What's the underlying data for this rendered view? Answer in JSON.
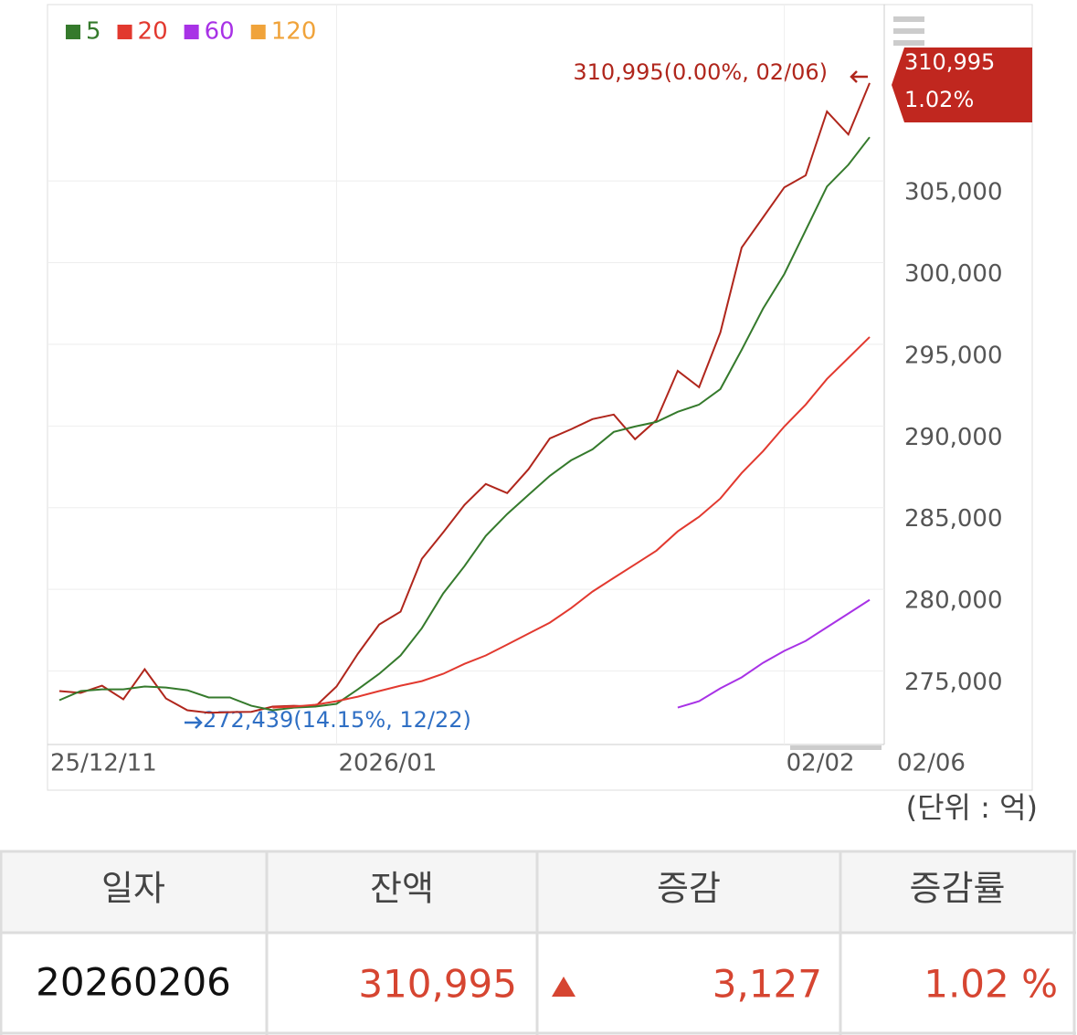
{
  "chart_data": {
    "type": "line",
    "categories": [
      "25/12/11",
      null,
      null,
      null,
      null,
      null,
      null,
      null,
      null,
      null,
      null,
      null,
      null,
      "2026/01",
      null,
      null,
      null,
      null,
      null,
      null,
      null,
      null,
      null,
      null,
      null,
      null,
      null,
      null,
      null,
      null,
      null,
      null,
      null,
      null,
      "02/02",
      null,
      null,
      null,
      "02/06"
    ],
    "series": [
      {
        "color": "#b0261c",
        "values": [
          273770,
          273660,
          274100,
          273270,
          275110,
          273320,
          272600,
          272439,
          272480,
          272500,
          272820,
          272870,
          272820,
          274050,
          276060,
          277850,
          278630,
          281870,
          283490,
          285170,
          286450,
          285890,
          287350,
          289240,
          289800,
          290420,
          290700,
          289190,
          290360,
          293380,
          292370,
          295730,
          300920,
          302770,
          304610,
          305340,
          309250,
          307850,
          310995
        ]
      },
      {
        "name": "5",
        "color": "#357a2c",
        "values": [
          273210,
          273770,
          273880,
          273880,
          274050,
          273990,
          273820,
          273380,
          273380,
          272870,
          272600,
          272760,
          272820,
          272990,
          273880,
          274830,
          275950,
          277620,
          279750,
          281420,
          283270,
          284610,
          285780,
          286950,
          287900,
          288570,
          289640,
          289970,
          290250,
          290870,
          291310,
          292260,
          294660,
          297180,
          299300,
          301980,
          304660,
          305990,
          307680
        ]
      },
      {
        "name": "20",
        "color": "#e2392f",
        "values": [
          null,
          null,
          null,
          null,
          null,
          null,
          null,
          null,
          null,
          null,
          272760,
          272820,
          272930,
          273150,
          273430,
          273770,
          274100,
          274380,
          274830,
          275440,
          275950,
          276620,
          277290,
          277960,
          278850,
          279860,
          280700,
          281530,
          282370,
          283550,
          284440,
          285560,
          287120,
          288460,
          289970,
          291310,
          292880,
          294160,
          295450
        ]
      },
      {
        "name": "60",
        "color": "#a832e6",
        "values": [
          null,
          null,
          null,
          null,
          null,
          null,
          null,
          null,
          null,
          null,
          null,
          null,
          null,
          null,
          null,
          null,
          null,
          null,
          null,
          null,
          null,
          null,
          null,
          null,
          null,
          null,
          null,
          null,
          null,
          272760,
          273150,
          273940,
          274610,
          275500,
          276230,
          276840,
          277680,
          278520,
          279360
        ]
      },
      {
        "name": "120",
        "color": "#f0a33a",
        "values": [
          null,
          null,
          null,
          null,
          null,
          null,
          null,
          null,
          null,
          null,
          null,
          null,
          null,
          null,
          null,
          null,
          null,
          null,
          null,
          null,
          null,
          null,
          null,
          null,
          null,
          null,
          null,
          null,
          null,
          null,
          null,
          null,
          null,
          null,
          null,
          null,
          null,
          null,
          null
        ]
      }
    ],
    "ylim": [
      270500,
      315800
    ],
    "yticks": [
      {
        "value": 275000,
        "label": "275,000"
      },
      {
        "value": 280000,
        "label": "280,000"
      },
      {
        "value": 285000,
        "label": "285,000"
      },
      {
        "value": 290000,
        "label": "290,000"
      },
      {
        "value": 295000,
        "label": "295,000"
      },
      {
        "value": 300000,
        "label": "300,000"
      },
      {
        "value": 305000,
        "label": "305,000"
      }
    ],
    "grid": true,
    "legend": "top-left",
    "annotations": {
      "max": "310,995(0.00%, 02/06)",
      "min": "272,439(14.15%, 12/22)",
      "last_value": "310,995",
      "last_change": "1.02%"
    },
    "unit": "(단위 : 억)"
  },
  "table": {
    "header": [
      "일자",
      "잔액",
      "증감",
      "증감률"
    ],
    "rows": [
      [
        "20260206",
        "310,995",
        "3,127",
        "1.02 %"
      ]
    ]
  }
}
